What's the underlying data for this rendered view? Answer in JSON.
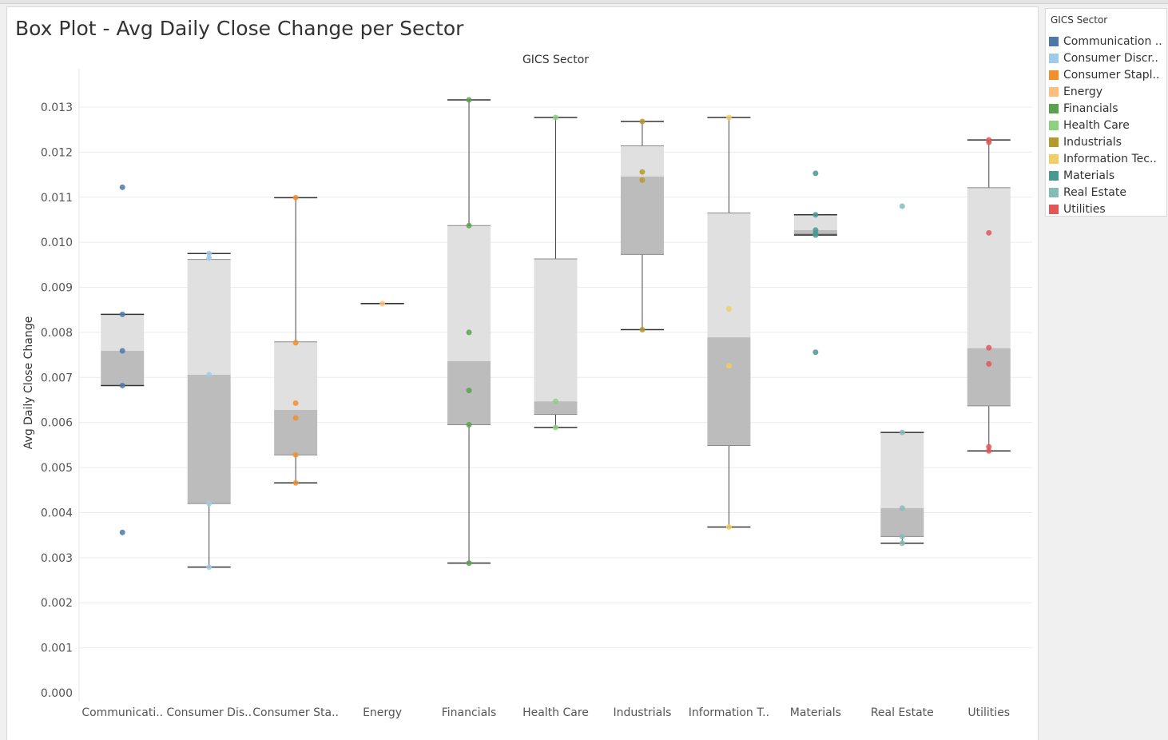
{
  "title": "Box Plot - Avg Daily Close Change per Sector",
  "legend": {
    "title": "GICS Sector",
    "items": [
      {
        "label": "Communication ..",
        "color": "#4e79a7"
      },
      {
        "label": "Consumer Discr..",
        "color": "#a0cbe8"
      },
      {
        "label": "Consumer Stapl..",
        "color": "#f28e2b"
      },
      {
        "label": "Energy",
        "color": "#ffbe7d"
      },
      {
        "label": "Financials",
        "color": "#59a14f"
      },
      {
        "label": "Health Care",
        "color": "#8cd17d"
      },
      {
        "label": "Industrials",
        "color": "#b6992d"
      },
      {
        "label": "Information Tec..",
        "color": "#f1ce63"
      },
      {
        "label": "Materials",
        "color": "#499894"
      },
      {
        "label": "Real Estate",
        "color": "#86bcb6"
      },
      {
        "label": "Utilities",
        "color": "#e15759"
      }
    ]
  },
  "chart_data": {
    "type": "box",
    "title": "Box Plot - Avg Daily Close Change per Sector",
    "column_header": "GICS Sector",
    "xlabel": "",
    "ylabel": "Avg Daily Close Change",
    "ylim": [
      0,
      0.0137
    ],
    "yticks": [
      "0.000",
      "0.001",
      "0.002",
      "0.003",
      "0.004",
      "0.005",
      "0.006",
      "0.007",
      "0.008",
      "0.009",
      "0.010",
      "0.011",
      "0.012",
      "0.013"
    ],
    "grid": true,
    "categories": [
      "Communicati..",
      "Consumer Dis..",
      "Consumer Sta..",
      "Energy",
      "Financials",
      "Health Care",
      "Industrials",
      "Information T..",
      "Materials",
      "Real Estate",
      "Utilities"
    ],
    "colors": [
      "#4e79a7",
      "#a0cbe8",
      "#f28e2b",
      "#ffbe7d",
      "#59a14f",
      "#8cd17d",
      "#b6992d",
      "#f1ce63",
      "#499894",
      "#86bcb6",
      "#e15759"
    ],
    "boxes": [
      {
        "whisker_low": 0.00682,
        "q1": 0.00682,
        "median": 0.00759,
        "q3": 0.0084,
        "whisker_high": 0.0084
      },
      {
        "whisker_low": 0.00279,
        "q1": 0.0042,
        "median": 0.00706,
        "q3": 0.00962,
        "whisker_high": 0.00975
      },
      {
        "whisker_low": 0.00466,
        "q1": 0.00528,
        "median": 0.00628,
        "q3": 0.00779,
        "whisker_high": 0.01099
      },
      {
        "whisker_low": 0.00864,
        "q1": 0.00864,
        "median": 0.00864,
        "q3": 0.00864,
        "whisker_high": 0.00864
      },
      {
        "whisker_low": 0.00288,
        "q1": 0.00595,
        "median": 0.00736,
        "q3": 0.01037,
        "whisker_high": 0.01316
      },
      {
        "whisker_low": 0.00589,
        "q1": 0.00618,
        "median": 0.00647,
        "q3": 0.00963,
        "whisker_high": 0.01277
      },
      {
        "whisker_low": 0.00806,
        "q1": 0.00973,
        "median": 0.01146,
        "q3": 0.01214,
        "whisker_high": 0.01268
      },
      {
        "whisker_low": 0.00368,
        "q1": 0.00549,
        "median": 0.00789,
        "q3": 0.01065,
        "whisker_high": 0.01277
      },
      {
        "whisker_low": 0.01016,
        "q1": 0.01018,
        "median": 0.01027,
        "q3": 0.01061,
        "whisker_high": 0.01061
      },
      {
        "whisker_low": 0.00332,
        "q1": 0.00347,
        "median": 0.0041,
        "q3": 0.00578,
        "whisker_high": 0.00578
      },
      {
        "whisker_low": 0.00537,
        "q1": 0.00637,
        "median": 0.00765,
        "q3": 0.01121,
        "whisker_high": 0.01227
      }
    ],
    "points": [
      [
        0.01122,
        0.0084,
        0.00759,
        0.00682,
        0.00356
      ],
      [
        0.00975,
        0.00965,
        0.00706,
        0.0042,
        0.00279
      ],
      [
        0.01099,
        0.00777,
        0.00643,
        0.0061,
        0.00528,
        0.00466
      ],
      [
        0.00864
      ],
      [
        0.01316,
        0.01037,
        0.008,
        0.00671,
        0.00595,
        0.00288
      ],
      [
        0.01277,
        0.00647,
        0.00589
      ],
      [
        0.01268,
        0.01156,
        0.01138,
        0.00806
      ],
      [
        0.01277,
        0.00852,
        0.00726,
        0.00368
      ],
      [
        0.01153,
        0.01061,
        0.01027,
        0.0102,
        0.01016,
        0.00756
      ],
      [
        0.0108,
        0.00578,
        0.0041,
        0.00347,
        0.00332
      ],
      [
        0.01227,
        0.01222,
        0.01021,
        0.00766,
        0.0073,
        0.00546,
        0.00537
      ]
    ]
  }
}
